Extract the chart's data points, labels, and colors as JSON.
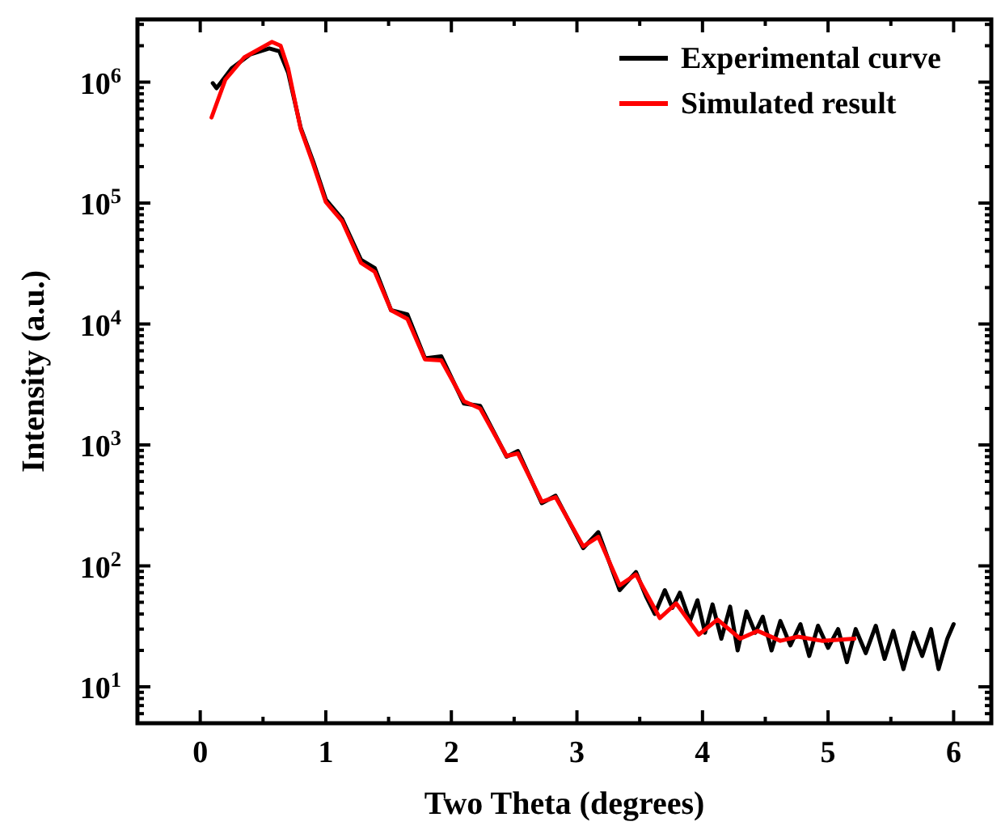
{
  "chart_data": {
    "type": "line",
    "xlabel": "Two Theta (degrees)",
    "ylabel": "Intensity (a.u.)",
    "log": "y",
    "legend": "top right",
    "grid": false,
    "line_style": "solid",
    "xlim": [
      -0.5,
      6.3
    ],
    "ylim": [
      5,
      3300000
    ],
    "xticks": [
      {
        "value": -0.5,
        "label": null
      },
      0,
      {
        "value": 0.5,
        "label": null
      },
      1,
      {
        "value": 1.5,
        "label": null
      },
      2,
      {
        "value": 2.5,
        "label": null
      },
      3,
      {
        "value": 3.5,
        "label": null
      },
      4,
      {
        "value": 4.5,
        "label": null
      },
      5,
      {
        "value": 5.5,
        "label": null
      },
      6
    ],
    "yticks": [
      {
        "value": 6,
        "label": null
      },
      {
        "value": 7,
        "label": null
      },
      {
        "value": 8,
        "label": null
      },
      {
        "value": 9,
        "label": null
      },
      {
        "value": 10,
        "label": "10$^{1}$"
      },
      {
        "value": 20,
        "label": null
      },
      {
        "value": 30,
        "label": null
      },
      {
        "value": 40,
        "label": null
      },
      {
        "value": 50,
        "label": null
      },
      {
        "value": 60,
        "label": null
      },
      {
        "value": 70,
        "label": null
      },
      {
        "value": 80,
        "label": null
      },
      {
        "value": 90,
        "label": null
      },
      {
        "value": 100,
        "label": "10$^{2}$"
      },
      {
        "value": 200,
        "label": null
      },
      {
        "value": 300,
        "label": null
      },
      {
        "value": 400,
        "label": null
      },
      {
        "value": 500,
        "label": null
      },
      {
        "value": 600,
        "label": null
      },
      {
        "value": 700,
        "label": null
      },
      {
        "value": 800,
        "label": null
      },
      {
        "value": 900,
        "label": null
      },
      {
        "value": 1000,
        "label": "10$^{3}$"
      },
      {
        "value": 2000,
        "label": null
      },
      {
        "value": 3000,
        "label": null
      },
      {
        "value": 4000,
        "label": null
      },
      {
        "value": 5000,
        "label": null
      },
      {
        "value": 6000,
        "label": null
      },
      {
        "value": 7000,
        "label": null
      },
      {
        "value": 8000,
        "label": null
      },
      {
        "value": 9000,
        "label": null
      },
      {
        "value": 10000,
        "label": "10$^{4}$"
      },
      {
        "value": 20000,
        "label": null
      },
      {
        "value": 30000,
        "label": null
      },
      {
        "value": 40000,
        "label": null
      },
      {
        "value": 50000,
        "label": null
      },
      {
        "value": 60000,
        "label": null
      },
      {
        "value": 70000,
        "label": null
      },
      {
        "value": 80000,
        "label": null
      },
      {
        "value": 90000,
        "label": null
      },
      {
        "value": 100000,
        "label": "10$^{5}$"
      },
      {
        "value": 200000,
        "label": null
      },
      {
        "value": 300000,
        "label": null
      },
      {
        "value": 400000,
        "label": null
      },
      {
        "value": 500000,
        "label": null
      },
      {
        "value": 600000,
        "label": null
      },
      {
        "value": 700000,
        "label": null
      },
      {
        "value": 800000,
        "label": null
      },
      {
        "value": 900000,
        "label": null
      },
      {
        "value": 1000000,
        "label": "10$^{6}$"
      },
      {
        "value": 2000000,
        "label": null
      },
      {
        "value": 3000000,
        "label": null
      }
    ],
    "series": [
      {
        "name": "Experimental curve",
        "color": "#000000",
        "x": [
          0.1,
          0.13,
          0.25,
          0.4,
          0.55,
          0.63,
          0.7,
          0.8,
          0.9,
          1.0,
          1.13,
          1.28,
          1.39,
          1.52,
          1.65,
          1.79,
          1.92,
          2.1,
          2.23,
          2.44,
          2.53,
          2.72,
          2.83,
          3.05,
          3.17,
          3.34,
          3.47,
          3.55,
          3.62,
          3.7,
          3.76,
          3.82,
          3.9,
          3.96,
          4.02,
          4.08,
          4.15,
          4.22,
          4.28,
          4.35,
          4.42,
          4.48,
          4.55,
          4.62,
          4.7,
          4.78,
          4.85,
          4.92,
          5.0,
          5.08,
          5.15,
          5.22,
          5.3,
          5.38,
          5.45,
          5.52,
          5.6,
          5.68,
          5.75,
          5.82,
          5.88,
          5.95,
          6.0
        ],
        "values": [
          980000,
          890000,
          1300000,
          1700000,
          1900000,
          1800000,
          1200000,
          420000,
          220000,
          107000,
          74000,
          34000,
          29000,
          13000,
          12000,
          5200,
          5400,
          2200,
          2100,
          800,
          890,
          330,
          380,
          140,
          190,
          63,
          89,
          56,
          40,
          63,
          45,
          60,
          35,
          52,
          28,
          48,
          25,
          46,
          20,
          42,
          28,
          38,
          20,
          35,
          22,
          33,
          18,
          32,
          21,
          30,
          16,
          30,
          19,
          32,
          17,
          29,
          14,
          28,
          18,
          30,
          14,
          25,
          33
        ]
      },
      {
        "name": "Simulated result",
        "color": "#ff0000",
        "x": [
          0.09,
          0.2,
          0.35,
          0.57,
          0.64,
          0.7,
          0.8,
          0.9,
          1.0,
          1.13,
          1.28,
          1.39,
          1.52,
          1.65,
          1.79,
          1.92,
          2.1,
          2.23,
          2.44,
          2.53,
          2.72,
          2.83,
          3.05,
          3.17,
          3.34,
          3.47,
          3.66,
          3.79,
          3.97,
          4.12,
          4.3,
          4.44,
          4.62,
          4.76,
          4.95,
          5.21
        ],
        "values": [
          510000,
          1050000,
          1600000,
          2150000,
          2000000,
          1300000,
          410000,
          210000,
          102000,
          71000,
          32000,
          27000,
          13000,
          11000,
          5100,
          5000,
          2300,
          2000,
          810,
          850,
          340,
          370,
          145,
          174,
          69,
          85,
          37,
          49,
          27,
          36,
          25,
          29,
          24,
          26,
          24,
          25
        ]
      }
    ]
  }
}
